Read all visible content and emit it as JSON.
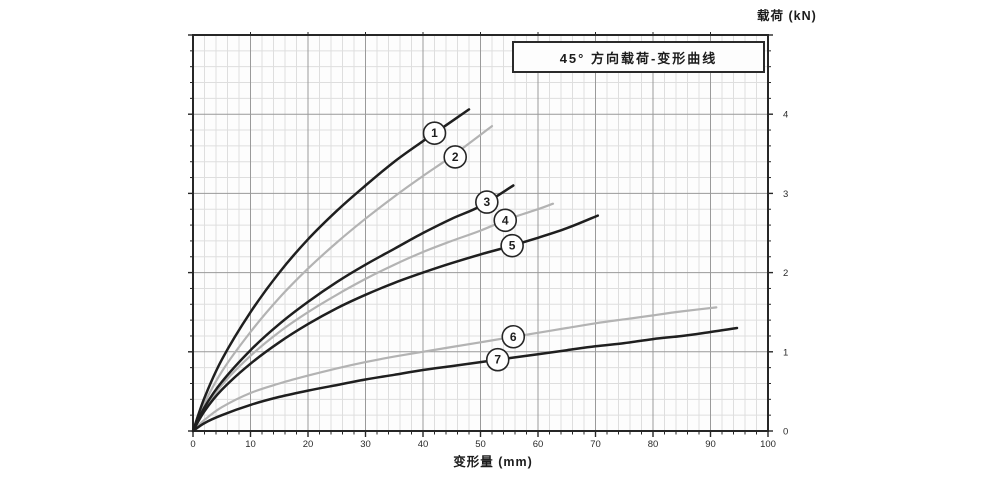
{
  "window": {
    "background": "#ffffff"
  },
  "chart_data": {
    "type": "line",
    "title": "45° 方向载荷-变形曲线",
    "xlabel": "变形量 (mm)",
    "ylabel": "载荷 (kN)",
    "xlim": [
      0,
      100
    ],
    "ylim": [
      0,
      5
    ],
    "x_ticks": [
      0,
      10,
      20,
      30,
      40,
      50,
      60,
      70,
      80,
      90,
      100
    ],
    "y_ticks": [
      0,
      1,
      2,
      3,
      4
    ],
    "grid": {
      "show": true,
      "minor_x": 2,
      "minor_y": 0.2,
      "major_x": 10,
      "major_y": 1
    },
    "legend_position": "none",
    "palette": {
      "dark_curve": "#1f1f1f",
      "gray_curve": "#b3b3b3",
      "frame": "#262626",
      "grid_major": "#9a9a9a",
      "grid_minor": "#dedede",
      "plot_bg": "#fdfdfd",
      "text": "#2a2a2a"
    },
    "series": [
      {
        "name": "1",
        "shade": "dark",
        "label_at": [
          42,
          3.76
        ],
        "points": [
          [
            0,
            0
          ],
          [
            2,
            0.42
          ],
          [
            5,
            0.9
          ],
          [
            10,
            1.5
          ],
          [
            15,
            2.0
          ],
          [
            20,
            2.42
          ],
          [
            25,
            2.78
          ],
          [
            30,
            3.1
          ],
          [
            35,
            3.4
          ],
          [
            40,
            3.66
          ],
          [
            44,
            3.86
          ],
          [
            48,
            4.06
          ]
        ]
      },
      {
        "name": "2",
        "shade": "gray",
        "label_at": [
          45.6,
          3.46
        ],
        "points": [
          [
            0,
            0
          ],
          [
            2,
            0.35
          ],
          [
            5,
            0.75
          ],
          [
            10,
            1.25
          ],
          [
            15,
            1.68
          ],
          [
            20,
            2.05
          ],
          [
            25,
            2.38
          ],
          [
            30,
            2.68
          ],
          [
            35,
            2.96
          ],
          [
            40,
            3.22
          ],
          [
            45,
            3.47
          ],
          [
            52,
            3.85
          ]
        ]
      },
      {
        "name": "3",
        "shade": "dark",
        "label_at": [
          51.1,
          2.89
        ],
        "points": [
          [
            0,
            0
          ],
          [
            2,
            0.3
          ],
          [
            5,
            0.62
          ],
          [
            10,
            1.02
          ],
          [
            15,
            1.35
          ],
          [
            20,
            1.63
          ],
          [
            25,
            1.88
          ],
          [
            30,
            2.1
          ],
          [
            35,
            2.3
          ],
          [
            40,
            2.5
          ],
          [
            45,
            2.68
          ],
          [
            50,
            2.84
          ],
          [
            55.7,
            3.1
          ]
        ]
      },
      {
        "name": "4",
        "shade": "gray",
        "label_at": [
          54.3,
          2.66
        ],
        "points": [
          [
            0,
            0
          ],
          [
            2,
            0.28
          ],
          [
            5,
            0.58
          ],
          [
            10,
            0.95
          ],
          [
            15,
            1.25
          ],
          [
            20,
            1.5
          ],
          [
            25,
            1.72
          ],
          [
            30,
            1.92
          ],
          [
            35,
            2.1
          ],
          [
            40,
            2.26
          ],
          [
            45,
            2.4
          ],
          [
            50,
            2.53
          ],
          [
            55,
            2.68
          ],
          [
            60,
            2.8
          ],
          [
            62.6,
            2.87
          ]
        ]
      },
      {
        "name": "5",
        "shade": "dark",
        "label_at": [
          55.5,
          2.34
        ],
        "points": [
          [
            0,
            0
          ],
          [
            2,
            0.25
          ],
          [
            5,
            0.52
          ],
          [
            10,
            0.85
          ],
          [
            15,
            1.12
          ],
          [
            20,
            1.35
          ],
          [
            25,
            1.55
          ],
          [
            30,
            1.72
          ],
          [
            35,
            1.87
          ],
          [
            40,
            2.0
          ],
          [
            45,
            2.12
          ],
          [
            50,
            2.23
          ],
          [
            55,
            2.33
          ],
          [
            60,
            2.44
          ],
          [
            65,
            2.56
          ],
          [
            70.4,
            2.72
          ]
        ]
      },
      {
        "name": "6",
        "shade": "gray",
        "label_at": [
          55.7,
          1.19
        ],
        "points": [
          [
            0,
            0
          ],
          [
            2,
            0.14
          ],
          [
            5,
            0.3
          ],
          [
            10,
            0.48
          ],
          [
            15,
            0.6
          ],
          [
            20,
            0.7
          ],
          [
            25,
            0.79
          ],
          [
            30,
            0.87
          ],
          [
            35,
            0.94
          ],
          [
            40,
            1.0
          ],
          [
            45,
            1.06
          ],
          [
            50,
            1.12
          ],
          [
            55,
            1.18
          ],
          [
            60,
            1.24
          ],
          [
            65,
            1.3
          ],
          [
            70,
            1.36
          ],
          [
            75,
            1.41
          ],
          [
            80,
            1.46
          ],
          [
            85,
            1.51
          ],
          [
            91,
            1.56
          ]
        ]
      },
      {
        "name": "7",
        "shade": "dark",
        "label_at": [
          53.0,
          0.9
        ],
        "points": [
          [
            0,
            0
          ],
          [
            2,
            0.1
          ],
          [
            5,
            0.2
          ],
          [
            10,
            0.33
          ],
          [
            15,
            0.43
          ],
          [
            20,
            0.51
          ],
          [
            25,
            0.58
          ],
          [
            30,
            0.65
          ],
          [
            35,
            0.71
          ],
          [
            40,
            0.77
          ],
          [
            45,
            0.82
          ],
          [
            50,
            0.87
          ],
          [
            55,
            0.92
          ],
          [
            60,
            0.97
          ],
          [
            65,
            1.02
          ],
          [
            70,
            1.07
          ],
          [
            75,
            1.11
          ],
          [
            80,
            1.16
          ],
          [
            85,
            1.2
          ],
          [
            90,
            1.25
          ],
          [
            94.6,
            1.3
          ]
        ]
      }
    ]
  }
}
